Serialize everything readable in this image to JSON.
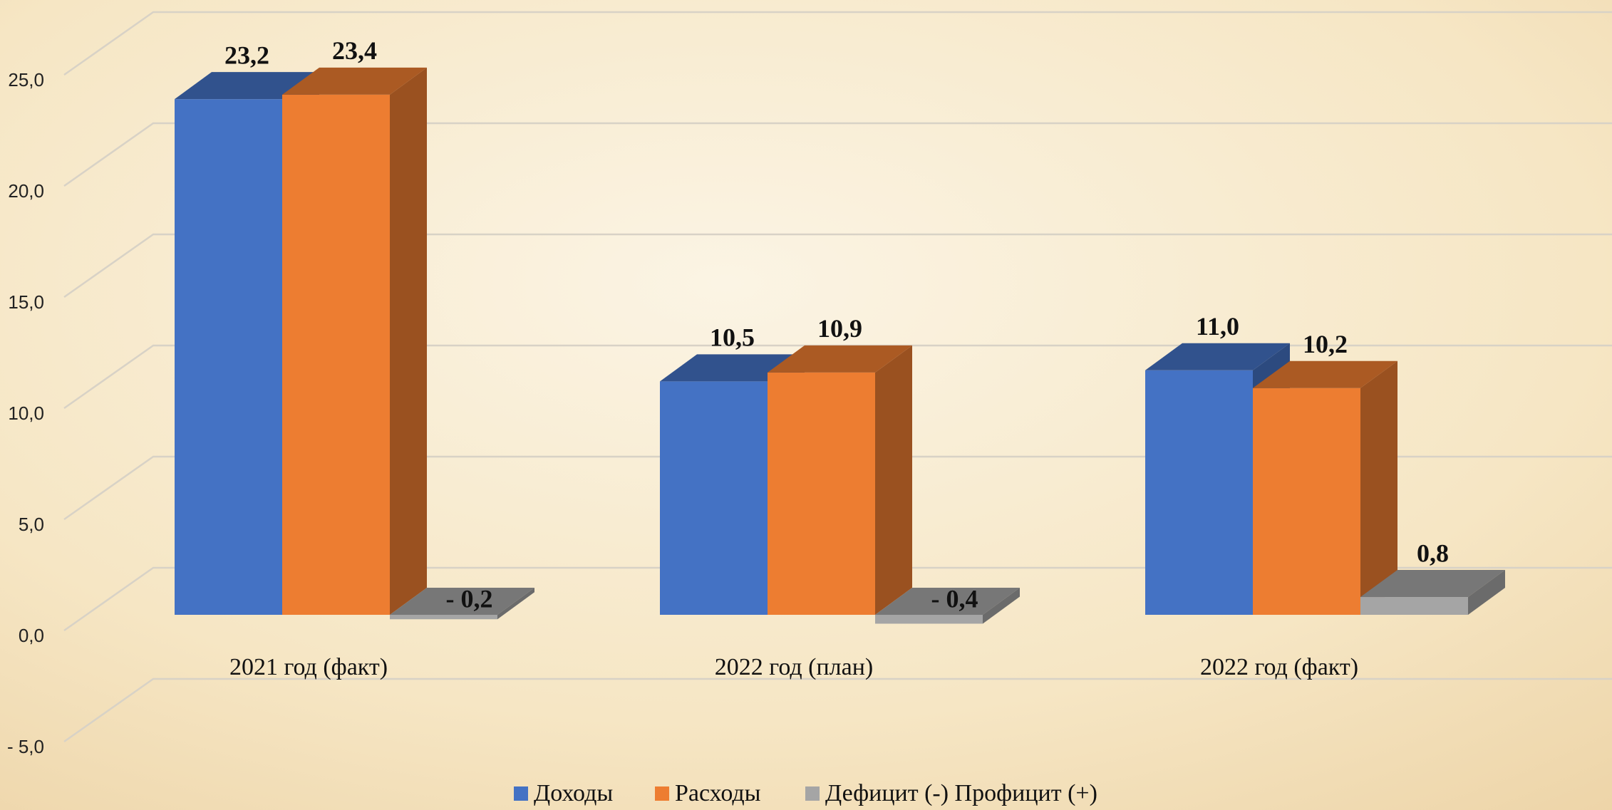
{
  "chart_data": {
    "type": "bar3d",
    "categories": [
      "2021 год (факт)",
      "2022 год (план)",
      "2022 год (факт)"
    ],
    "series": [
      {
        "name": "Доходы",
        "color": "#4472c4",
        "values": [
          23.2,
          10.5,
          11.0
        ],
        "value_labels": [
          "23,2",
          "10,5",
          "11,0"
        ]
      },
      {
        "name": "Расходы",
        "color": "#ed7d31",
        "values": [
          23.4,
          10.9,
          10.2
        ],
        "value_labels": [
          "23,4",
          "10,9",
          "10,2"
        ]
      },
      {
        "name": "Дефицит (-) Профицит (+)",
        "color": "#a5a5a5",
        "values": [
          -0.2,
          -0.4,
          0.8
        ],
        "value_labels": [
          "- 0,2",
          "- 0,4",
          "0,8"
        ]
      }
    ],
    "ylim": [
      -5,
      25
    ],
    "yticks": [
      {
        "value": -5,
        "label": "- 5,0"
      },
      {
        "value": 0,
        "label": "0,0"
      },
      {
        "value": 5,
        "label": "5,0"
      },
      {
        "value": 10,
        "label": "10,0"
      },
      {
        "value": 15,
        "label": "15,0"
      },
      {
        "value": 20,
        "label": "20,0"
      },
      {
        "value": 25,
        "label": "25,0"
      }
    ],
    "grid": true,
    "legend": "bottom"
  }
}
